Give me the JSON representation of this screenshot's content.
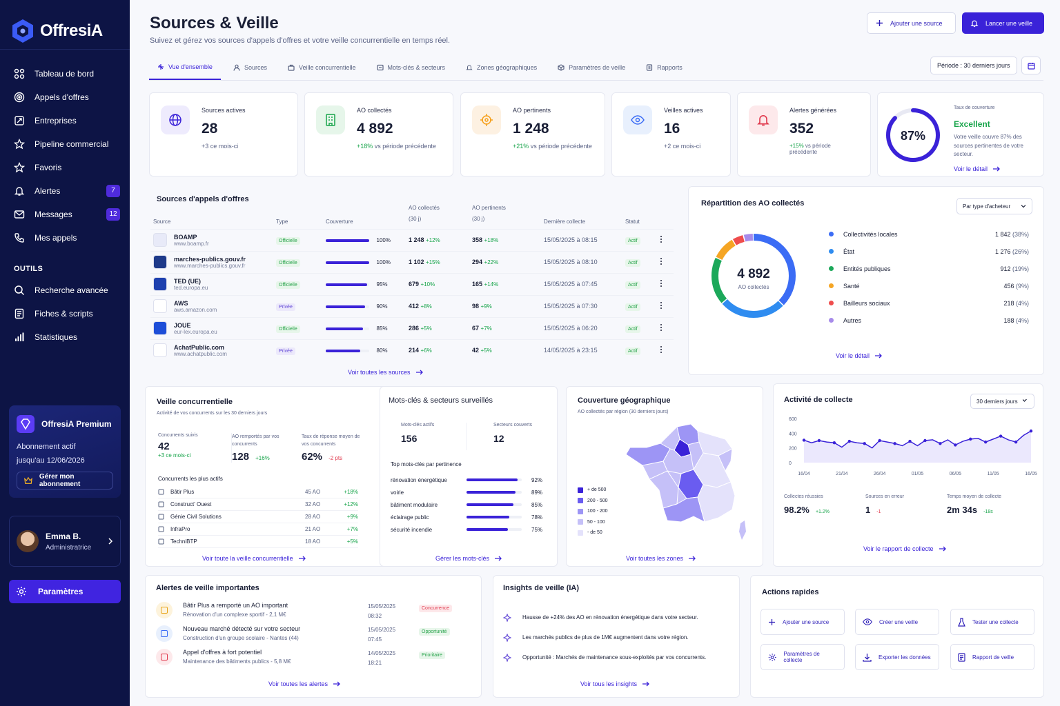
{
  "app": {
    "name": "OffresiA"
  },
  "sidebar": {
    "nav": [
      {
        "label": "Tableau de bord",
        "icon": "grid-icon"
      },
      {
        "label": "Appels d'offres",
        "icon": "target-icon"
      },
      {
        "label": "Entreprises",
        "icon": "building-icon"
      },
      {
        "label": "Pipeline commercial",
        "icon": "star-icon"
      },
      {
        "label": "Favoris",
        "icon": "star-icon"
      },
      {
        "label": "Alertes",
        "icon": "bell-icon",
        "badge": "7"
      },
      {
        "label": "Messages",
        "icon": "mail-icon",
        "badge": "12"
      },
      {
        "label": "Mes appels",
        "icon": "phone-icon"
      }
    ],
    "tools_title": "OUTILS",
    "tools": [
      {
        "label": "Recherche avancée",
        "icon": "search-icon"
      },
      {
        "label": "Fiches & scripts",
        "icon": "document-icon"
      },
      {
        "label": "Statistiques",
        "icon": "bar-chart-icon"
      }
    ],
    "premium": {
      "title": "OffresiA Premium",
      "line1": "Abonnement actif",
      "line2": "jusqu'au 12/06/2026",
      "button": "Gérer mon abonnement"
    },
    "user": {
      "name": "Emma B.",
      "role": "Administratrice"
    },
    "settings": "Paramètres"
  },
  "header": {
    "title": "Sources & Veille",
    "subtitle": "Suivez et gérez vos sources d'appels d'offres et votre veille concurrentielle en temps réel.",
    "add_source": "Ajouter une source",
    "launch": "Lancer une veille"
  },
  "tabs": [
    "Vue d'ensemble",
    "Sources",
    "Veille concurrentielle",
    "Mots-clés & secteurs",
    "Zones géographiques",
    "Paramètres de veille",
    "Rapports"
  ],
  "period": "Période : 30 derniers jours",
  "kpis": [
    {
      "label": "Sources actives",
      "value": "28",
      "delta": "+3 ce mois-ci",
      "delta_rest": ""
    },
    {
      "label": "AO collectés",
      "value": "4 892",
      "delta": "+18%",
      "delta_rest": " vs période précédente"
    },
    {
      "label": "AO pertinents",
      "value": "1 248",
      "delta": "+21%",
      "delta_rest": " vs période précédente"
    },
    {
      "label": "Veilles actives",
      "value": "16",
      "delta": "+2 ce mois-ci",
      "delta_rest": ""
    },
    {
      "label": "Alertes générées",
      "value": "352",
      "delta": "+15%",
      "delta_rest": " vs période précédente"
    }
  ],
  "coverage": {
    "label": "Taux de couverture",
    "value": "87%",
    "percent": 87,
    "status": "Excellent",
    "desc": "Votre veille couvre 87% des sources pertinentes de votre secteur.",
    "link": "Voir le détail"
  },
  "sources": {
    "title": "Sources d'appels d'offres",
    "cols": [
      "Source",
      "Type",
      "Couverture",
      "AO collectés",
      "(30 j)",
      "AO pertinents",
      "(30 j)",
      "Dernière collecte",
      "Statut"
    ],
    "rows": [
      {
        "name": "BOAMP",
        "url": "www.boamp.fr",
        "type": "Officielle",
        "cov": 100,
        "cov_label": "100%",
        "ao": "1 248",
        "ao_d": "+12%",
        "pert": "358",
        "pert_d": "+18%",
        "date": "15/05/2025 à 08:15",
        "status": "Actif",
        "color": "#e8eaf8"
      },
      {
        "name": "marches-publics.gouv.fr",
        "url": "www.marches-publics.gouv.fr",
        "type": "Officielle",
        "cov": 100,
        "cov_label": "100%",
        "ao": "1 102",
        "ao_d": "+15%",
        "pert": "294",
        "pert_d": "+22%",
        "date": "15/05/2025 à 08:10",
        "status": "Actif",
        "color": "#1e3a8a"
      },
      {
        "name": "TED (UE)",
        "url": "ted.europa.eu",
        "type": "Officielle",
        "cov": 95,
        "cov_label": "95%",
        "ao": "679",
        "ao_d": "+10%",
        "pert": "165",
        "pert_d": "+14%",
        "date": "15/05/2025 à 07:45",
        "status": "Actif",
        "color": "#1e40af"
      },
      {
        "name": "AWS",
        "url": "aws.amazon.com",
        "type": "Privée",
        "cov": 90,
        "cov_label": "90%",
        "ao": "412",
        "ao_d": "+8%",
        "pert": "98",
        "pert_d": "+9%",
        "date": "15/05/2025 à 07:30",
        "status": "Actif",
        "color": "#ffffff"
      },
      {
        "name": "JOUE",
        "url": "eur-lex.europa.eu",
        "type": "Officielle",
        "cov": 85,
        "cov_label": "85%",
        "ao": "286",
        "ao_d": "+5%",
        "pert": "67",
        "pert_d": "+7%",
        "date": "15/05/2025 à 06:20",
        "status": "Actif",
        "color": "#1d4ed8"
      },
      {
        "name": "AchatPublic.com",
        "url": "www.achatpublic.com",
        "type": "Privée",
        "cov": 80,
        "cov_label": "80%",
        "ao": "214",
        "ao_d": "+6%",
        "pert": "42",
        "pert_d": "+5%",
        "date": "14/05/2025 à 23:15",
        "status": "Actif",
        "color": "#ffffff"
      }
    ],
    "link": "Voir toutes les sources"
  },
  "repartition": {
    "title": "Répartition des AO collectés",
    "filter": "Par type d'acheteur",
    "total": "4 892",
    "total_label": "AO collectés",
    "link": "Voir le détail",
    "items": [
      {
        "label": "Collectivités locales",
        "value": "1 842",
        "pct": "(38%)",
        "color": "#3b6cf5"
      },
      {
        "label": "État",
        "value": "1 276",
        "pct": "(26%)",
        "color": "#2f8cf0"
      },
      {
        "label": "Entités publiques",
        "value": "912",
        "pct": "(19%)",
        "color": "#1ca85a"
      },
      {
        "label": "Santé",
        "value": "456",
        "pct": "(9%)",
        "color": "#f5a524"
      },
      {
        "label": "Bailleurs sociaux",
        "value": "218",
        "pct": "(4%)",
        "color": "#ef4d4d"
      },
      {
        "label": "Autres",
        "value": "188",
        "pct": "(4%)",
        "color": "#a78bea"
      }
    ]
  },
  "veille": {
    "title": "Veille concurrentielle",
    "subtitle": "Activité de vos concurrents sur les 30 derniers jours",
    "stats": [
      {
        "label": "Concurrents suivis",
        "value": "42",
        "delta": "+3 ce mois-ci"
      },
      {
        "label": "AO remportés par vos concurrents",
        "value": "128",
        "delta": "+16%"
      },
      {
        "label": "Taux de réponse moyen de vos concurrents",
        "value": "62%",
        "delta": "-2 pts"
      }
    ],
    "list_title": "Concurrents les plus actifs",
    "rows": [
      {
        "name": "Bâtir Plus",
        "ao": "45 AO",
        "d": "+18%"
      },
      {
        "name": "Construct' Ouest",
        "ao": "32 AO",
        "d": "+12%"
      },
      {
        "name": "Génie Civil Solutions",
        "ao": "28 AO",
        "d": "+9%"
      },
      {
        "name": "InfraPro",
        "ao": "21 AO",
        "d": "+7%"
      },
      {
        "name": "TechniBTP",
        "ao": "18 AO",
        "d": "+5%"
      }
    ],
    "link": "Voir toute la veille concurrentielle"
  },
  "keywords": {
    "title": "Mots-clés & secteurs surveillés",
    "kw_label": "Mots-clés actifs",
    "kw_value": "156",
    "sect_label": "Secteurs couverts",
    "sect_value": "12",
    "top_title": "Top mots-clés par pertinence",
    "rows": [
      {
        "label": "rénovation énergétique",
        "pct": 92,
        "text": "92%"
      },
      {
        "label": "voirie",
        "pct": 89,
        "text": "89%"
      },
      {
        "label": "bâtiment modulaire",
        "pct": 85,
        "text": "85%"
      },
      {
        "label": "éclairage public",
        "pct": 78,
        "text": "78%"
      },
      {
        "label": "sécurité incendie",
        "pct": 75,
        "text": "75%"
      }
    ],
    "link": "Gérer les mots-clés"
  },
  "geo": {
    "title": "Couverture géographique",
    "subtitle": "AO collectés par région (30 derniers jours)",
    "legend": [
      {
        "label": "+ de 500",
        "color": "#3a22d8"
      },
      {
        "label": "200 - 500",
        "color": "#6a5cf0"
      },
      {
        "label": "100 - 200",
        "color": "#9d95f5"
      },
      {
        "label": "50 - 100",
        "color": "#c5c0f8"
      },
      {
        "label": "- de 50",
        "color": "#e4e2fb"
      }
    ],
    "link": "Voir toutes les zones"
  },
  "activity": {
    "title": "Activité de collecte",
    "filter": "30 derniers jours",
    "stats": [
      {
        "label": "Collectes réussies",
        "value": "98.2%",
        "delta": "+1.2%"
      },
      {
        "label": "Sources en erreur",
        "value": "1",
        "delta": "-1"
      },
      {
        "label": "Temps moyen de collecte",
        "value": "2m 34s",
        "delta": "-18s"
      }
    ],
    "link": "Voir le rapport de collecte"
  },
  "chart_data": {
    "type": "area",
    "x": [
      "16/04",
      "17/04",
      "18/04",
      "19/04",
      "20/04",
      "21/04",
      "22/04",
      "23/04",
      "24/04",
      "25/04",
      "26/04",
      "27/04",
      "28/04",
      "29/04",
      "30/04",
      "01/05",
      "02/05",
      "03/05",
      "04/05",
      "05/05",
      "06/05",
      "07/05",
      "08/05",
      "09/05",
      "10/05",
      "11/05",
      "12/05",
      "13/05",
      "14/05",
      "15/05",
      "16/05"
    ],
    "x_ticks": [
      "16/04",
      "21/04",
      "26/04",
      "01/05",
      "06/05",
      "11/05",
      "16/05"
    ],
    "series": [
      {
        "values": [
          305,
          270,
          300,
          280,
          270,
          210,
          290,
          270,
          260,
          200,
          300,
          280,
          260,
          230,
          290,
          230,
          300,
          310,
          260,
          310,
          240,
          290,
          320,
          330,
          280,
          320,
          360,
          310,
          280,
          370,
          430
        ]
      }
    ],
    "ylim": [
      0,
      600
    ],
    "y_ticks": [
      "600",
      "400",
      "200",
      "0"
    ]
  },
  "alerts": {
    "title": "Alertes de veille importantes",
    "rows": [
      {
        "title": "Bâtir Plus a remporté un AO important",
        "sub": "Rénovation d'un complexe sportif - 2,1 M€",
        "date": "15/05/2025",
        "time": "08:32",
        "tag": "Concurrence",
        "icon": "trophy-icon"
      },
      {
        "title": "Nouveau marché détecté sur votre secteur",
        "sub": "Construction d'un groupe scolaire - Nantes (44)",
        "date": "15/05/2025",
        "time": "07:45",
        "tag": "Opportunité",
        "icon": "building-icon"
      },
      {
        "title": "Appel d'offres à fort potentiel",
        "sub": "Maintenance des bâtiments publics - 5,8 M€",
        "date": "14/05/2025",
        "time": "18:21",
        "tag": "Prioritaire",
        "icon": "target-icon"
      }
    ],
    "link": "Voir toutes les alertes"
  },
  "insights": {
    "title": "Insights de veille (IA)",
    "rows": [
      "Hausse de +24% des AO en rénovation énergétique dans votre secteur.",
      "Les marchés publics de plus de 1M€ augmentent dans votre région.",
      "Opportunité : Marchés de maintenance sous-exploités par vos concurrents."
    ],
    "link": "Voir tous les insights"
  },
  "quick": {
    "title": "Actions rapides",
    "items": [
      {
        "label": "Ajouter une source",
        "icon": "plus-icon"
      },
      {
        "label": "Créer une veille",
        "icon": "eye-icon"
      },
      {
        "label": "Tester une collecte",
        "icon": "flask-icon"
      },
      {
        "label": "Paramètres de collecte",
        "icon": "gear-icon"
      },
      {
        "label": "Exporter les données",
        "icon": "download-icon"
      },
      {
        "label": "Rapport de veille",
        "icon": "report-icon"
      }
    ]
  }
}
